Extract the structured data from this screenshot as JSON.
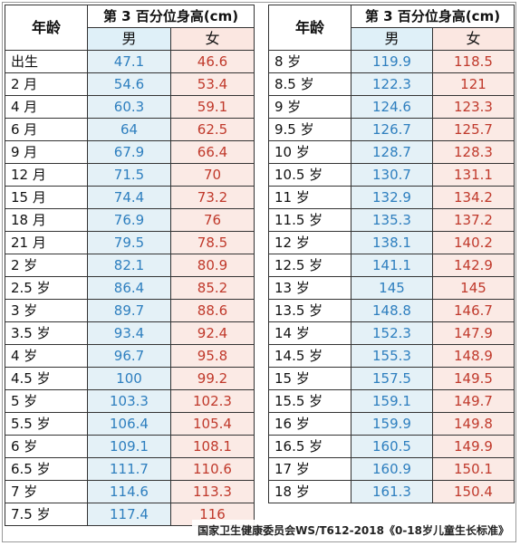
{
  "header": {
    "age_label": "年龄",
    "title": "第 3 百分位身高(cm)",
    "male": "男",
    "female": "女"
  },
  "left_rows": [
    {
      "age": "出生",
      "m": "47.1",
      "f": "46.6"
    },
    {
      "age": "2 月",
      "m": "54.6",
      "f": "53.4"
    },
    {
      "age": "4 月",
      "m": "60.3",
      "f": "59.1"
    },
    {
      "age": "6 月",
      "m": "64",
      "f": "62.5"
    },
    {
      "age": "9 月",
      "m": "67.9",
      "f": "66.4"
    },
    {
      "age": "12 月",
      "m": "71.5",
      "f": "70"
    },
    {
      "age": "15 月",
      "m": "74.4",
      "f": "73.2"
    },
    {
      "age": "18 月",
      "m": "76.9",
      "f": "76"
    },
    {
      "age": "21 月",
      "m": "79.5",
      "f": "78.5"
    },
    {
      "age": "2 岁",
      "m": "82.1",
      "f": "80.9"
    },
    {
      "age": "2.5 岁",
      "m": "86.4",
      "f": "85.2"
    },
    {
      "age": "3 岁",
      "m": "89.7",
      "f": "88.6"
    },
    {
      "age": "3.5 岁",
      "m": "93.4",
      "f": "92.4"
    },
    {
      "age": "4 岁",
      "m": "96.7",
      "f": "95.8"
    },
    {
      "age": "4.5 岁",
      "m": "100",
      "f": "99.2"
    },
    {
      "age": "5 岁",
      "m": "103.3",
      "f": "102.3"
    },
    {
      "age": "5.5 岁",
      "m": "106.4",
      "f": "105.4"
    },
    {
      "age": "6 岁",
      "m": "109.1",
      "f": "108.1"
    },
    {
      "age": "6.5 岁",
      "m": "111.7",
      "f": "110.6"
    },
    {
      "age": "7 岁",
      "m": "114.6",
      "f": "113.3"
    },
    {
      "age": "7.5 岁",
      "m": "117.4",
      "f": "116"
    }
  ],
  "right_rows": [
    {
      "age": "8 岁",
      "m": "119.9",
      "f": "118.5"
    },
    {
      "age": "8.5 岁",
      "m": "122.3",
      "f": "121"
    },
    {
      "age": "9 岁",
      "m": "124.6",
      "f": "123.3"
    },
    {
      "age": "9.5 岁",
      "m": "126.7",
      "f": "125.7"
    },
    {
      "age": "10 岁",
      "m": "128.7",
      "f": "128.3"
    },
    {
      "age": "10.5 岁",
      "m": "130.7",
      "f": "131.1"
    },
    {
      "age": "11 岁",
      "m": "132.9",
      "f": "134.2"
    },
    {
      "age": "11.5 岁",
      "m": "135.3",
      "f": "137.2"
    },
    {
      "age": "12 岁",
      "m": "138.1",
      "f": "140.2"
    },
    {
      "age": "12.5 岁",
      "m": "141.1",
      "f": "142.9"
    },
    {
      "age": "13 岁",
      "m": "145",
      "f": "145"
    },
    {
      "age": "13.5 岁",
      "m": "148.8",
      "f": "146.7"
    },
    {
      "age": "14 岁",
      "m": "152.3",
      "f": "147.9"
    },
    {
      "age": "14.5 岁",
      "m": "155.3",
      "f": "148.9"
    },
    {
      "age": "15 岁",
      "m": "157.5",
      "f": "149.5"
    },
    {
      "age": "15.5 岁",
      "m": "159.1",
      "f": "149.7"
    },
    {
      "age": "16 岁",
      "m": "159.9",
      "f": "149.8"
    },
    {
      "age": "16.5 岁",
      "m": "160.5",
      "f": "149.9"
    },
    {
      "age": "17 岁",
      "m": "160.9",
      "f": "150.1"
    },
    {
      "age": "18 岁",
      "m": "161.3",
      "f": "150.4"
    }
  ],
  "watermark": "国家卫生健康委员会WS/T612-2018《0-18岁儿童生长标准》"
}
